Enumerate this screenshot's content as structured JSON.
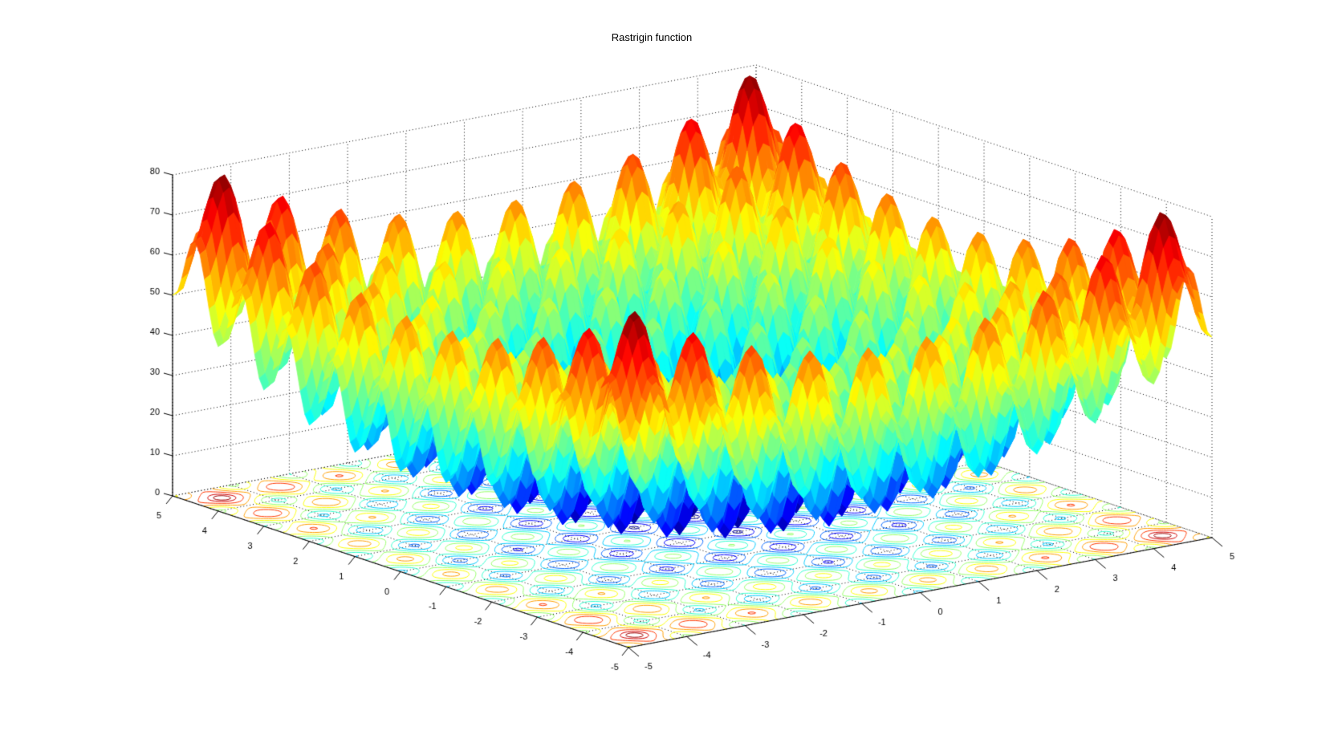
{
  "figure": {
    "background_color": "#ffffff",
    "text_color": "#000000"
  },
  "chart_data": {
    "type": "surface",
    "title": "Rastrigin function",
    "formula": "f(x,y) = 20 + (x^2 - 10*cos(2*pi*x)) + (y^2 - 10*cos(2*pi*y))",
    "function_params": {
      "offset": 20,
      "amplitude": 10
    },
    "x_range": [
      -5,
      5
    ],
    "y_range": [
      -5,
      5
    ],
    "z_range": [
      0,
      80
    ],
    "grid_step": 0.1,
    "x_tick_values": [
      -5,
      -4,
      -3,
      -2,
      -1,
      0,
      1,
      2,
      3,
      4,
      5
    ],
    "x_tick_labels": [
      "-5",
      "-4",
      "-3",
      "-2",
      "-1",
      "0",
      "1",
      "2",
      "3",
      "4",
      "5"
    ],
    "y_tick_values": [
      -5,
      -4,
      -3,
      -2,
      -1,
      0,
      1,
      2,
      3,
      4,
      5
    ],
    "y_tick_labels": [
      "-5",
      "-4",
      "-3",
      "-2",
      "-1",
      "0",
      "1",
      "2",
      "3",
      "4",
      "5"
    ],
    "z_tick_values": [
      0,
      10,
      20,
      30,
      40,
      50,
      60,
      70,
      80
    ],
    "z_tick_labels": [
      "0",
      "10",
      "20",
      "30",
      "40",
      "50",
      "60",
      "70",
      "80"
    ],
    "colormap": "jet",
    "colormap_levels": 64,
    "shading": "flat",
    "edge_color": "none",
    "grid_style": "dotted",
    "grid_color": "#000000",
    "axis_color": "#000000",
    "floor_contour": true,
    "contour_levels": [
      2,
      10,
      18,
      26,
      34,
      42,
      50,
      58,
      66,
      74,
      78
    ],
    "contour_grid": 201,
    "view": {
      "azimuth": -37.5,
      "elevation": 30
    }
  }
}
